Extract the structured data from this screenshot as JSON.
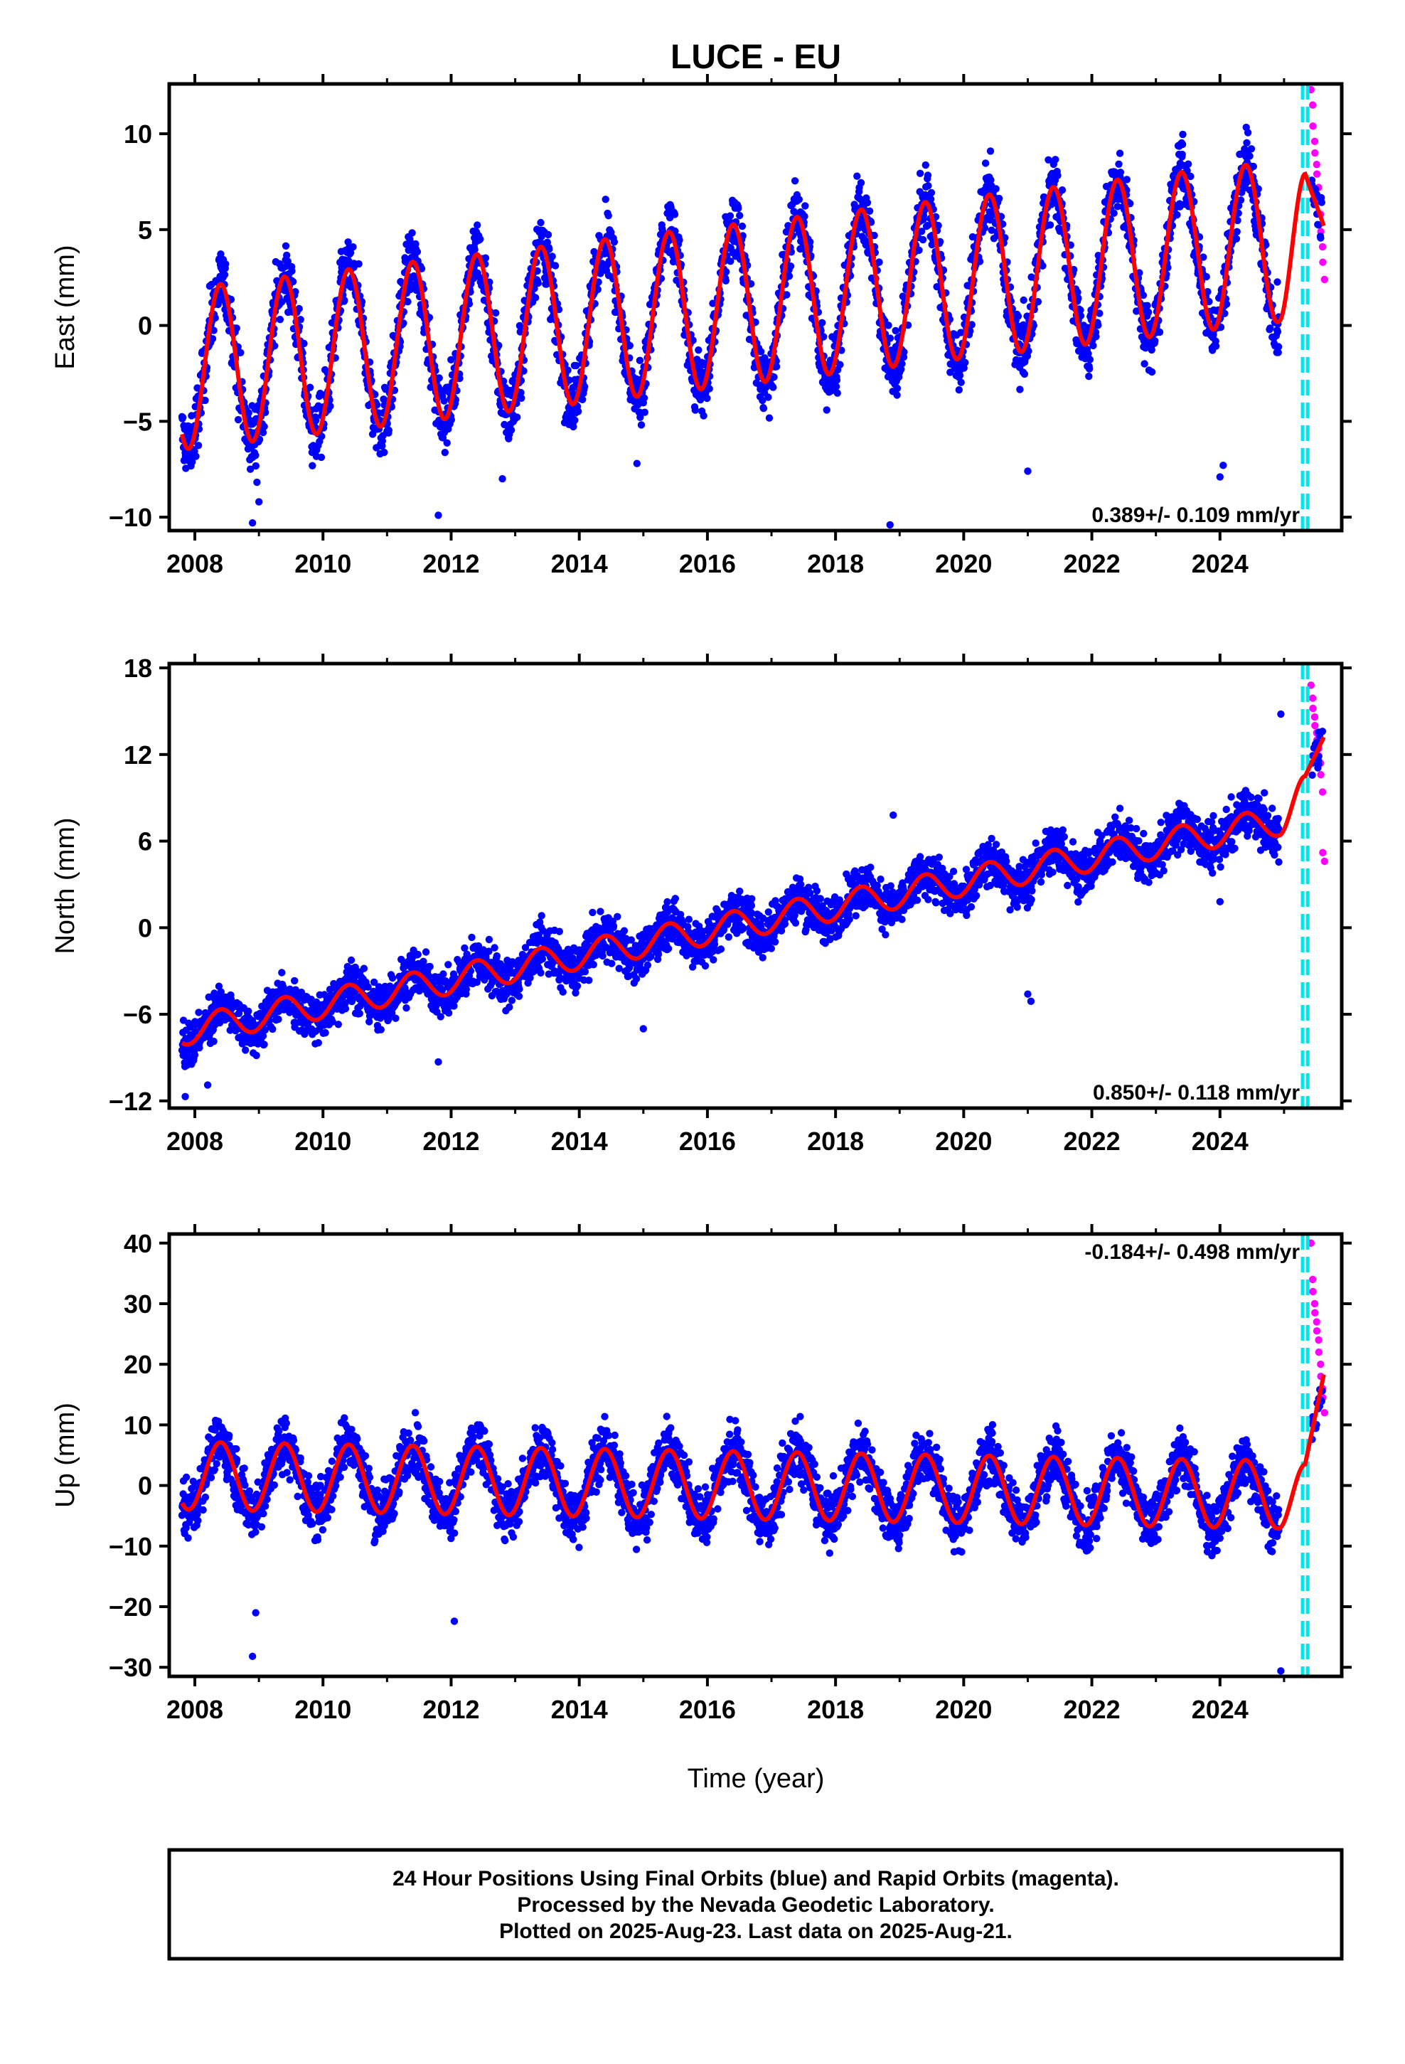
{
  "chart_data": {
    "type": "scatter",
    "title": "LUCE - EU",
    "xlabel": "Time (year)",
    "xlim": [
      2007.6,
      2025.9
    ],
    "xticks": [
      2008,
      2010,
      2012,
      2014,
      2016,
      2018,
      2020,
      2022,
      2024
    ],
    "equipment_change_lines": [
      2025.29,
      2025.37
    ],
    "colors": {
      "final_orbits": "#0000ff",
      "rapid_orbits": "#ff00ff",
      "model_fit": "#ff0000",
      "equipment_change": "#00e5ee"
    },
    "panels": [
      {
        "id": "east",
        "ylabel": "East (mm)",
        "ylim": [
          -10.7,
          12.6
        ],
        "yticks": [
          -10,
          -5,
          0,
          5,
          10
        ],
        "rate_label": "0.389+/- 0.109 mm/yr",
        "rate_position": "bottom-right",
        "model": {
          "fit_start": 2007.8,
          "fit_end": 2024.92,
          "offset": -2.2,
          "slope": 0.389,
          "seasonal_amplitude": 4.2,
          "gap_end": 2025.33,
          "gap_end_value": 7.9,
          "end_year": 2025.62,
          "end_value": 5.2
        },
        "series": [
          {
            "name": "Final Orbits (blue)",
            "x_range": [
              2007.8,
              2024.92
            ],
            "noise": 1.6,
            "outliers": [
              [
                2008.9,
                -10.3
              ],
              [
                2009.0,
                -9.2
              ],
              [
                2011.8,
                -9.9
              ],
              [
                2012.8,
                -8.0
              ],
              [
                2014.9,
                -7.2
              ],
              [
                2018.85,
                -10.4
              ],
              [
                2021.0,
                -7.6
              ],
              [
                2024.0,
                -7.9
              ],
              [
                2024.05,
                -7.3
              ]
            ]
          },
          {
            "name": "Rapid Orbits (magenta)",
            "x_range": [
              2025.42,
              2025.62
            ],
            "values": [
              12.3,
              11.5,
              10.4,
              9.6,
              9.0,
              8.4,
              7.9,
              7.2,
              6.5,
              5.8,
              4.9,
              4.1,
              3.3,
              2.4
            ]
          }
        ]
      },
      {
        "id": "north",
        "ylabel": "North (mm)",
        "ylim": [
          -12.5,
          18.3
        ],
        "yticks": [
          -12,
          -6,
          0,
          6,
          12,
          18
        ],
        "rate_label": "0.850+/- 0.118 mm/yr",
        "rate_position": "bottom-right",
        "model": {
          "fit_start": 2007.8,
          "fit_end": 2024.92,
          "offset": -7.0,
          "slope": 0.85,
          "seasonal_amplitude": 1.0,
          "gap_end": 2025.33,
          "gap_end_value": 10.5,
          "end_year": 2025.62,
          "end_value": 13.2
        },
        "series": [
          {
            "name": "Final Orbits (blue)",
            "x_range": [
              2007.8,
              2024.92
            ],
            "noise": 1.5,
            "outliers": [
              [
                2007.85,
                -11.7
              ],
              [
                2008.2,
                -10.9
              ],
              [
                2011.8,
                -9.3
              ],
              [
                2015.0,
                -7.0
              ],
              [
                2018.9,
                7.8
              ],
              [
                2021.0,
                -4.6
              ],
              [
                2021.05,
                -5.1
              ],
              [
                2022.8,
                5.3
              ],
              [
                2024.0,
                1.8
              ],
              [
                2024.95,
                14.8
              ]
            ]
          },
          {
            "name": "Rapid Orbits (magenta)",
            "x_range": [
              2025.42,
              2025.62
            ],
            "values": [
              16.8,
              15.9,
              15.2,
              14.6,
              14.0,
              13.5,
              13.0,
              12.4,
              11.9,
              11.4,
              10.6,
              9.4,
              5.2,
              4.6
            ]
          }
        ]
      },
      {
        "id": "up",
        "ylabel": "Up (mm)",
        "ylim": [
          -31.5,
          41.5
        ],
        "yticks": [
          -30,
          -20,
          -10,
          0,
          10,
          20,
          30,
          40
        ],
        "rate_label": "-0.184+/- 0.498 mm/yr",
        "rate_position": "top-right",
        "model": {
          "fit_start": 2007.8,
          "fit_end": 2024.92,
          "offset": 1.6,
          "slope": -0.184,
          "seasonal_amplitude": 5.6,
          "gap_end": 2025.33,
          "gap_end_value": 3.5,
          "end_year": 2025.62,
          "end_value": 18.3
        },
        "series": [
          {
            "name": "Final Orbits (blue)",
            "x_range": [
              2007.8,
              2024.92
            ],
            "noise": 4.3,
            "outliers": [
              [
                2008.9,
                -28.2
              ],
              [
                2008.95,
                -21.0
              ],
              [
                2012.05,
                -22.4
              ],
              [
                2024.95,
                -30.6
              ]
            ]
          },
          {
            "name": "Rapid Orbits (magenta)",
            "x_range": [
              2025.42,
              2025.62
            ],
            "values": [
              40.0,
              34.0,
              32.0,
              30.0,
              28.5,
              27.0,
              25.5,
              24.0,
              22.0,
              20.0,
              18.0,
              16.0,
              14.5,
              12.0
            ]
          }
        ]
      }
    ]
  },
  "caption": {
    "line1": "24 Hour Positions Using Final Orbits (blue) and Rapid Orbits (magenta).",
    "line2": "Processed by the Nevada Geodetic Laboratory.",
    "line3": "Plotted on 2025-Aug-23. Last data on 2025-Aug-21."
  }
}
